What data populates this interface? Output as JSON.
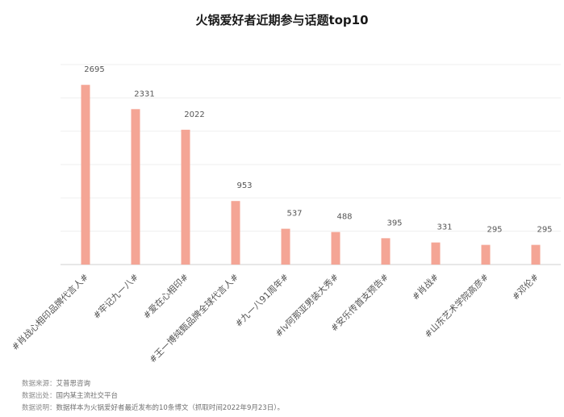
{
  "chart_data": {
    "type": "bar",
    "title": "火锅爱好者近期参与话题top10",
    "categories": [
      "#肖战心相印品牌代言人#",
      "#牢记九一八#",
      "#爱在心相印#",
      "#王一博纯甄品牌全球代言人#",
      "#九一八91周年#",
      "#lv阿那亚男装大秀#",
      "#安乐传首支预告#",
      "#肖战#",
      "#山东艺术学院高彦#",
      "#邓伦#"
    ],
    "values": [
      2695,
      2331,
      2022,
      953,
      537,
      488,
      395,
      331,
      295,
      295
    ],
    "ylim": [
      0,
      3000
    ],
    "grid": true,
    "bar_color": "#f4a595",
    "xlabel": "",
    "ylabel": ""
  },
  "footnotes": [
    {
      "label": "数据来源：",
      "text": "艾普思咨询"
    },
    {
      "label": "数据出处：",
      "text": "国内某主流社交平台"
    },
    {
      "label": "数据说明：",
      "text": "数据样本为火锅爱好者最近发布的10条博文（抓取时间2022年9月23日）。"
    }
  ]
}
